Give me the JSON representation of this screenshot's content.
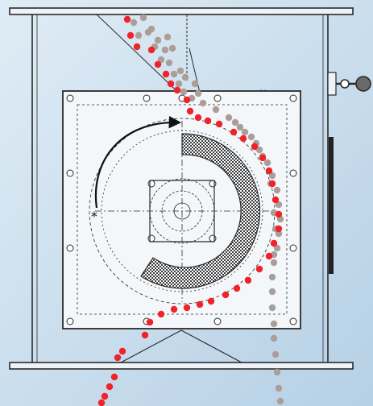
{
  "diagram": {
    "marker_label": "*",
    "colors": {
      "background_top": "#dfecf5",
      "background_bottom": "#b6d0e5",
      "line": "#2a2a2a",
      "dash_line": "#4a4a4a",
      "red_particle": "#f0222a",
      "gray_particle": "#ab9e98",
      "gray_particle_light": "#c5b7b0",
      "rotor_hatch_dark": "#3a3a3a",
      "rotor_hatch_light": "#ffffff",
      "handle_gray": "#6a6a6a",
      "arrow": "#111111"
    },
    "icons": {
      "rotation_arrow": "curved-arrow-icon",
      "valve": "handle-knob-icon",
      "marker": "asterisk-icon"
    }
  }
}
